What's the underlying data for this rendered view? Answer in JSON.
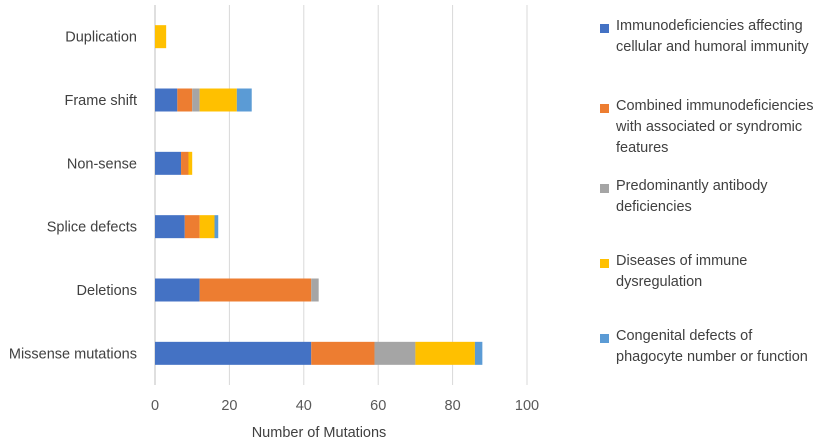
{
  "chart_data": {
    "type": "bar",
    "orientation": "horizontal",
    "stacked": true,
    "title": "",
    "xlabel": "Number of Mutations",
    "ylabel": "",
    "xlim": [
      0,
      100
    ],
    "x_ticks": [
      0,
      20,
      40,
      60,
      80,
      100
    ],
    "grid": true,
    "legend_position": "right",
    "categories": [
      "Duplication",
      "Frame shift",
      "Non-sense",
      "Splice defects",
      "Deletions",
      "Missense mutations"
    ],
    "series": [
      {
        "name": "Immunodeficiencies affecting cellular and humoral immunity",
        "color": "#4472C4",
        "values": [
          0,
          6,
          7,
          8,
          12,
          42
        ]
      },
      {
        "name": "Combined immunodeficiencies with associated or syndromic features",
        "color": "#ED7D31",
        "values": [
          0,
          4,
          2,
          4,
          30,
          17
        ]
      },
      {
        "name": "Predominantly antibody deficiencies",
        "color": "#A5A5A5",
        "values": [
          0,
          2,
          0,
          0,
          2,
          11
        ]
      },
      {
        "name": "Diseases of immune dysregulation",
        "color": "#FFC000",
        "values": [
          3,
          10,
          1,
          4,
          0,
          16
        ]
      },
      {
        "name": "Congenital defects of phagocyte number or function",
        "color": "#5B9BD5",
        "values": [
          0,
          4,
          0,
          1,
          0,
          2
        ]
      }
    ]
  },
  "legend": {
    "items": [
      {
        "lines": [
          "Immunodeficiencies affecting",
          "cellular and humoral immunity"
        ],
        "color": "#4472C4"
      },
      {
        "lines": [
          "Combined immunodeficiencies",
          "with associated or syndromic",
          "features"
        ],
        "color": "#ED7D31"
      },
      {
        "lines": [
          "Predominantly antibody",
          "deficiencies"
        ],
        "color": "#A5A5A5"
      },
      {
        "lines": [
          "Diseases of immune",
          "dysregulation"
        ],
        "color": "#FFC000"
      },
      {
        "lines": [
          "Congenital defects of",
          "phagocyte number or function"
        ],
        "color": "#5B9BD5"
      }
    ]
  }
}
